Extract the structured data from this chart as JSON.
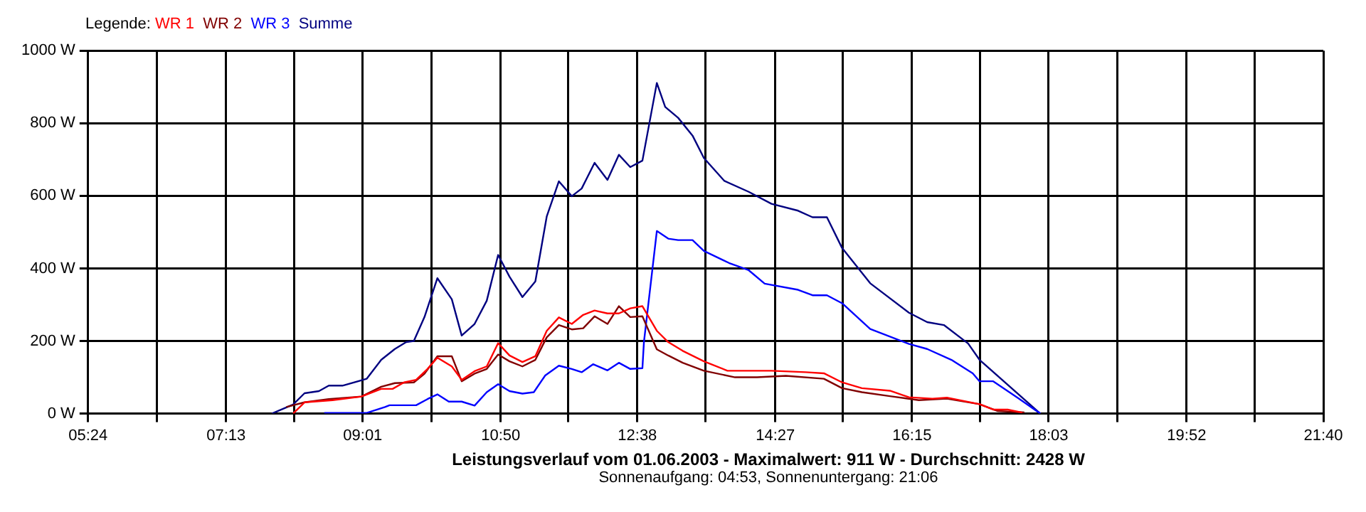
{
  "chart_data": {
    "type": "line",
    "title": "Leistungsverlauf vom 01.06.2003 - Maximalwert: 911 W - Durchschnitt: 2428 W",
    "subtitle": "Sonnenaufgang: 04:53, Sonnenuntergang: 21:06",
    "legend_title": "Legende:",
    "legend": "top left",
    "grid": true,
    "marker": "none",
    "xlim": [
      5.4,
      21.667
    ],
    "xticks": [
      {
        "value": 5.4,
        "label": "05:24"
      },
      {
        "value": 6.304,
        "label": null
      },
      {
        "value": 7.2167,
        "label": "07:13"
      },
      {
        "value": 8.111,
        "label": null
      },
      {
        "value": 9.0167,
        "label": "09:01"
      },
      {
        "value": 9.919,
        "label": null
      },
      {
        "value": 10.8333,
        "label": "10:50"
      },
      {
        "value": 11.726,
        "label": null
      },
      {
        "value": 12.6333,
        "label": "12:38"
      },
      {
        "value": 13.533,
        "label": null
      },
      {
        "value": 14.45,
        "label": "14:27"
      },
      {
        "value": 15.341,
        "label": null
      },
      {
        "value": 16.25,
        "label": "16:15"
      },
      {
        "value": 17.148,
        "label": null
      },
      {
        "value": 18.05,
        "label": "18:03"
      },
      {
        "value": 18.955,
        "label": null
      },
      {
        "value": 19.8667,
        "label": "19:52"
      },
      {
        "value": 20.763,
        "label": null
      },
      {
        "value": 21.667,
        "label": "21:40"
      }
    ],
    "ylim": [
      0,
      1000
    ],
    "yticks": [
      {
        "value": 0,
        "label": "0 W"
      },
      {
        "value": 200,
        "label": "200 W"
      },
      {
        "value": 400,
        "label": "400 W"
      },
      {
        "value": 600,
        "label": "600 W"
      },
      {
        "value": 800,
        "label": "800 W"
      },
      {
        "value": 1000,
        "label": "1000 W"
      }
    ],
    "series": [
      {
        "name": "WR 1",
        "color": "#ff0000",
        "x": [
          8.1,
          8.25,
          8.62,
          9.0,
          9.26,
          9.41,
          9.56,
          9.72,
          9.87,
          10.0,
          10.19,
          10.32,
          10.49,
          10.65,
          10.8,
          10.95,
          11.12,
          11.29,
          11.44,
          11.6,
          11.77,
          11.92,
          12.07,
          12.24,
          12.39,
          12.54,
          12.7,
          12.89,
          13.04,
          13.23,
          13.51,
          13.82,
          14.21,
          14.4,
          14.85,
          15.09,
          15.33,
          15.59,
          15.96,
          16.21,
          16.52,
          16.71,
          17.14,
          17.32,
          17.51,
          17.7
        ],
        "values": [
          0,
          31,
          37,
          47,
          68,
          68,
          86,
          93,
          123,
          154,
          130,
          93,
          117,
          130,
          194,
          160,
          142,
          158,
          228,
          265,
          247,
          272,
          284,
          276,
          276,
          290,
          296,
          228,
          197,
          173,
          144,
          118,
          118,
          118,
          114,
          111,
          86,
          70,
          63,
          45,
          41,
          44,
          26,
          11,
          11,
          3
        ]
      },
      {
        "name": "WR 2",
        "color": "#800000",
        "x": [
          8.01,
          8.25,
          8.57,
          9.0,
          9.26,
          9.44,
          9.69,
          9.83,
          10.0,
          10.19,
          10.32,
          10.49,
          10.65,
          10.8,
          10.95,
          11.12,
          11.29,
          11.44,
          11.6,
          11.77,
          11.92,
          12.07,
          12.24,
          12.39,
          12.54,
          12.7,
          12.89,
          13.04,
          13.23,
          13.51,
          13.92,
          14.21,
          14.59,
          15.09,
          15.33,
          15.59,
          15.96,
          16.34,
          16.71,
          17.14,
          17.38,
          17.73
        ],
        "values": [
          18,
          31,
          40,
          47,
          74,
          84,
          86,
          110,
          158,
          158,
          89,
          110,
          123,
          163,
          144,
          130,
          148,
          210,
          244,
          232,
          235,
          268,
          247,
          296,
          266,
          268,
          177,
          160,
          140,
          118,
          100,
          100,
          104,
          96,
          70,
          59,
          48,
          37,
          41,
          26,
          7,
          3
        ]
      },
      {
        "name": "WR 3",
        "color": "#0000ff",
        "x": [
          8.51,
          9.07,
          9.31,
          9.37,
          9.72,
          9.87,
          10.0,
          10.15,
          10.32,
          10.49,
          10.65,
          10.8,
          10.95,
          11.12,
          11.27,
          11.42,
          11.6,
          11.77,
          11.9,
          12.05,
          12.24,
          12.39,
          12.54,
          12.7,
          12.72,
          12.89,
          13.04,
          13.17,
          13.36,
          13.51,
          13.84,
          14.1,
          14.31,
          14.75,
          14.94,
          15.13,
          15.33,
          15.7,
          16.21,
          16.45,
          16.77,
          17.05,
          17.14,
          17.32,
          17.64,
          17.94
        ],
        "values": [
          2,
          2,
          18,
          23,
          23,
          40,
          53,
          33,
          33,
          22,
          59,
          81,
          62,
          55,
          59,
          105,
          132,
          123,
          114,
          136,
          119,
          140,
          123,
          125,
          197,
          503,
          482,
          478,
          478,
          448,
          415,
          395,
          358,
          341,
          326,
          326,
          304,
          233,
          192,
          178,
          148,
          111,
          89,
          89,
          44,
          0
        ]
      },
      {
        "name": "Summe",
        "color": "#000080",
        "x": [
          7.82,
          8.1,
          8.25,
          8.44,
          8.57,
          8.75,
          9.07,
          9.26,
          9.44,
          9.59,
          9.69,
          9.83,
          10.0,
          10.19,
          10.32,
          10.49,
          10.65,
          10.8,
          10.95,
          11.12,
          11.29,
          11.44,
          11.6,
          11.77,
          11.9,
          12.07,
          12.24,
          12.39,
          12.54,
          12.7,
          12.89,
          13.0,
          13.17,
          13.36,
          13.51,
          13.78,
          14.1,
          14.4,
          14.75,
          14.94,
          15.13,
          15.33,
          15.7,
          16.21,
          16.45,
          16.67,
          16.99,
          17.14,
          17.94
        ],
        "values": [
          0,
          25,
          56,
          62,
          77,
          77,
          96,
          148,
          178,
          197,
          200,
          266,
          373,
          315,
          215,
          247,
          311,
          437,
          377,
          321,
          364,
          543,
          640,
          599,
          620,
          691,
          644,
          713,
          679,
          697,
          911,
          845,
          815,
          766,
          704,
          641,
          611,
          578,
          559,
          541,
          541,
          456,
          359,
          278,
          252,
          244,
          193,
          148,
          0
        ]
      }
    ]
  }
}
